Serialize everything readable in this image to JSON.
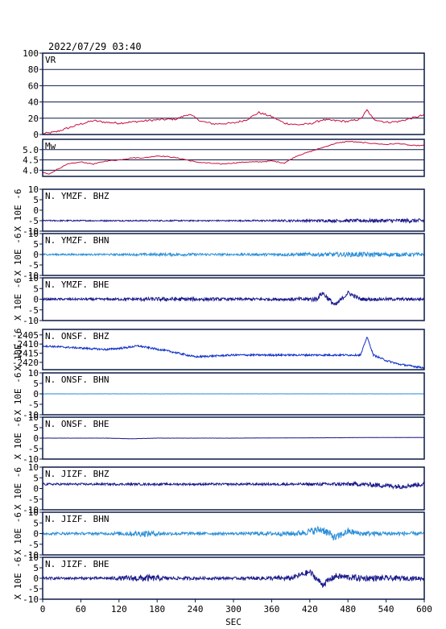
{
  "header": {
    "timestamp": "2022/07/29 03:40"
  },
  "x_axis": {
    "label": "SEC",
    "ticks": [
      0,
      60,
      120,
      180,
      240,
      300,
      360,
      420,
      480,
      540,
      600
    ],
    "range": [
      0,
      600
    ]
  },
  "colors": {
    "frame": "#0b1a46",
    "vr_mw": "#c8103c",
    "dark_blue": "#1a1a8c",
    "light_blue": "#2a8fd8",
    "blue": "#1030c8"
  },
  "chart_data": [
    {
      "type": "line",
      "panel": "VR",
      "title": "VR",
      "ylim": [
        0,
        100
      ],
      "yticks": [
        0,
        20,
        40,
        60,
        80,
        100
      ],
      "grid": true,
      "color": "#c8103c",
      "x": [
        0,
        20,
        40,
        60,
        80,
        100,
        120,
        150,
        180,
        210,
        230,
        250,
        270,
        300,
        320,
        340,
        360,
        380,
        400,
        420,
        440,
        460,
        480,
        500,
        510,
        520,
        540,
        560,
        580,
        600
      ],
      "values": [
        1,
        3,
        8,
        13,
        17,
        15,
        14,
        16,
        18,
        19,
        25,
        16,
        13,
        14,
        18,
        27,
        22,
        14,
        12,
        13,
        18,
        17,
        16,
        19,
        30,
        19,
        15,
        16,
        20,
        24
      ]
    },
    {
      "type": "line",
      "panel": "Mw",
      "title": "Mw",
      "ylim": [
        3.7,
        5.5
      ],
      "yticks": [
        4.0,
        4.5,
        5.0
      ],
      "grid": true,
      "color": "#c8103c",
      "x": [
        0,
        10,
        20,
        40,
        60,
        80,
        100,
        120,
        140,
        160,
        180,
        200,
        220,
        240,
        260,
        280,
        300,
        320,
        340,
        360,
        380,
        400,
        420,
        440,
        460,
        480,
        500,
        520,
        540,
        560,
        580,
        600
      ],
      "values": [
        3.9,
        3.8,
        4.0,
        4.3,
        4.4,
        4.3,
        4.45,
        4.5,
        4.6,
        4.6,
        4.7,
        4.65,
        4.55,
        4.4,
        4.35,
        4.3,
        4.35,
        4.4,
        4.4,
        4.45,
        4.35,
        4.7,
        4.9,
        5.1,
        5.3,
        5.4,
        5.35,
        5.3,
        5.25,
        5.3,
        5.2,
        5.2
      ]
    },
    {
      "type": "line",
      "panel": "waveform",
      "title": "N. YMZF. BHZ",
      "ylabel": "X 10E -6",
      "ylim": [
        -10,
        10
      ],
      "yticks": [
        -10,
        -5,
        0,
        5,
        10
      ],
      "color": "#1a1a8c",
      "x": [
        0,
        100,
        200,
        300,
        400,
        500,
        600
      ],
      "values": [
        -5,
        -5,
        -5,
        -5,
        -5,
        -5,
        -5
      ],
      "amplitude": [
        0.3,
        0.3,
        0.3,
        0.3,
        0.5,
        0.8,
        1.0
      ]
    },
    {
      "type": "line",
      "panel": "waveform",
      "title": "N. YMZF. BHN",
      "ylabel": "X 10E -6",
      "ylim": [
        -10,
        10
      ],
      "yticks": [
        -10,
        -5,
        0,
        5,
        10
      ],
      "color": "#2a8fd8",
      "x": [
        0,
        100,
        200,
        300,
        400,
        500,
        600
      ],
      "values": [
        0,
        0,
        0,
        0,
        0,
        0,
        0
      ],
      "amplitude": [
        0.4,
        0.4,
        0.7,
        0.5,
        0.8,
        1.2,
        0.8
      ]
    },
    {
      "type": "line",
      "panel": "waveform",
      "title": "N. YMZF. BHE",
      "ylabel": "X 10E -6",
      "ylim": [
        -10,
        10
      ],
      "yticks": [
        -10,
        -5,
        0,
        5,
        10
      ],
      "color": "#1a1a8c",
      "x": [
        0,
        100,
        200,
        300,
        400,
        430,
        440,
        460,
        480,
        500,
        600
      ],
      "values": [
        0,
        0,
        0,
        0,
        0,
        0,
        3,
        -3,
        3,
        0,
        0
      ],
      "amplitude": [
        0.5,
        0.5,
        1.0,
        0.6,
        0.8,
        1.2,
        1.2,
        1.2,
        1.0,
        0.8,
        0.6
      ]
    },
    {
      "type": "line",
      "panel": "waveform",
      "title": "N. ONSF. BHZ",
      "ylabel": "X 10E -6",
      "ylim": [
        -2424,
        -2402
      ],
      "yticks": [
        -2420,
        -2415,
        -2410,
        -2405
      ],
      "color": "#1030c8",
      "x": [
        0,
        50,
        100,
        130,
        150,
        200,
        240,
        300,
        360,
        420,
        480,
        500,
        510,
        520,
        540,
        560,
        580,
        600
      ],
      "values": [
        -2411,
        -2412,
        -2413,
        -2412,
        -2411,
        -2414,
        -2417,
        -2416,
        -2416,
        -2416,
        -2416,
        -2416,
        -2406,
        -2416,
        -2419,
        -2421,
        -2422,
        -2423
      ],
      "amplitude": [
        0.5,
        0.5,
        0.5,
        0.5,
        0.5,
        0.5,
        0.5,
        0.5,
        0.5,
        0.5,
        0.5,
        0.5,
        0.3,
        0.5,
        0.5,
        0.5,
        0.5,
        0.5
      ]
    },
    {
      "type": "line",
      "panel": "waveform",
      "title": "N. ONSF. BHN",
      "ylabel": "X 10E -6",
      "ylim": [
        -10,
        10
      ],
      "yticks": [
        -10,
        -5,
        0,
        5,
        10
      ],
      "color": "#2a8fd8",
      "x": [
        0,
        300,
        600
      ],
      "values": [
        0,
        0,
        0
      ],
      "amplitude": [
        0.05,
        0.05,
        0.05
      ]
    },
    {
      "type": "line",
      "panel": "waveform",
      "title": "N. ONSF. BHE",
      "ylabel": "X 10E -6",
      "ylim": [
        -10,
        10
      ],
      "yticks": [
        -10,
        -5,
        0,
        5,
        10
      ],
      "color": "#1a1a8c",
      "x": [
        0,
        100,
        140,
        180,
        300,
        540,
        600
      ],
      "values": [
        0,
        0,
        -0.3,
        0,
        0,
        0.3,
        0.3
      ],
      "amplitude": [
        0.05,
        0.05,
        0.05,
        0.05,
        0.05,
        0.05,
        0.05
      ]
    },
    {
      "type": "line",
      "panel": "waveform",
      "title": "N. JIZF. BHZ",
      "ylabel": "X 10E -6",
      "ylim": [
        -10,
        10
      ],
      "yticks": [
        -10,
        -5,
        0,
        5,
        10
      ],
      "color": "#1a1a8c",
      "x": [
        0,
        100,
        200,
        300,
        400,
        500,
        560,
        600
      ],
      "values": [
        2,
        2,
        2,
        2,
        2,
        2,
        1,
        2
      ],
      "amplitude": [
        0.5,
        0.5,
        0.5,
        0.5,
        0.6,
        1.0,
        1.2,
        1.0
      ]
    },
    {
      "type": "line",
      "panel": "waveform",
      "title": "N. JIZF. BHN",
      "ylabel": "X 10E -6",
      "ylim": [
        -10,
        10
      ],
      "yticks": [
        -10,
        -5,
        0,
        5,
        10
      ],
      "color": "#2a8fd8",
      "x": [
        0,
        100,
        160,
        200,
        300,
        400,
        440,
        460,
        480,
        500,
        600
      ],
      "values": [
        0,
        0,
        0,
        0,
        0,
        0,
        2,
        -2,
        1,
        0,
        0
      ],
      "amplitude": [
        0.6,
        0.6,
        1.5,
        0.8,
        0.6,
        1.2,
        2.0,
        1.8,
        1.5,
        1.2,
        0.8
      ]
    },
    {
      "type": "line",
      "panel": "waveform",
      "title": "N. JIZF. BHE",
      "ylabel": "X 10E -6",
      "ylim": [
        -10,
        10
      ],
      "yticks": [
        -10,
        -5,
        0,
        5,
        10
      ],
      "color": "#1a1a8c",
      "x": [
        0,
        100,
        160,
        200,
        300,
        390,
        420,
        440,
        460,
        500,
        560,
        600
      ],
      "values": [
        0,
        0,
        0,
        0,
        0,
        0,
        3,
        -3,
        1,
        0,
        0,
        0
      ],
      "amplitude": [
        0.6,
        0.6,
        1.8,
        0.8,
        0.6,
        1.2,
        1.5,
        1.5,
        1.5,
        1.5,
        1.2,
        1.0
      ]
    }
  ]
}
